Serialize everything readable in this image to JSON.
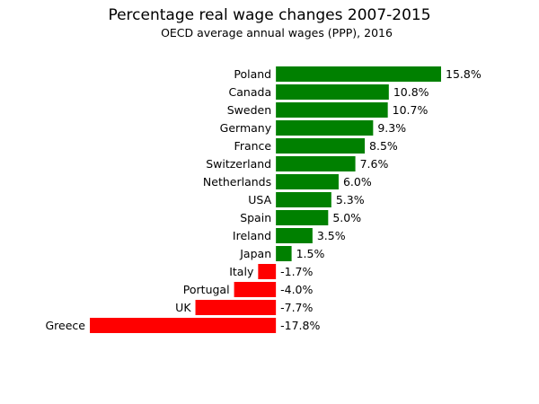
{
  "chart_data": {
    "type": "bar",
    "orientation": "horizontal",
    "title": "Percentage real wage changes 2007-2015",
    "subtitle": "OECD average annual wages (PPP), 2016",
    "categories": [
      "Poland",
      "Canada",
      "Sweden",
      "Germany",
      "France",
      "Switzerland",
      "Netherlands",
      "USA",
      "Spain",
      "Ireland",
      "Japan",
      "Italy",
      "Portugal",
      "UK",
      "Greece"
    ],
    "values": [
      15.8,
      10.8,
      10.7,
      9.3,
      8.5,
      7.6,
      6.0,
      5.3,
      5.0,
      3.5,
      1.5,
      -1.7,
      -4.0,
      -7.7,
      -17.8
    ],
    "value_labels": [
      "15.8%",
      "10.8%",
      "10.7%",
      "9.3%",
      "8.5%",
      "7.6%",
      "6.0%",
      "5.3%",
      "5.0%",
      "3.5%",
      "1.5%",
      "-1.7%",
      "-4.0%",
      "-7.7%",
      "-17.8%"
    ],
    "xlabel": "",
    "ylabel": "",
    "xlim": [
      -17.8,
      15.8
    ],
    "grid": false,
    "axes_visible": false,
    "colors": {
      "positive": "#008000",
      "negative": "#ff0000"
    }
  }
}
